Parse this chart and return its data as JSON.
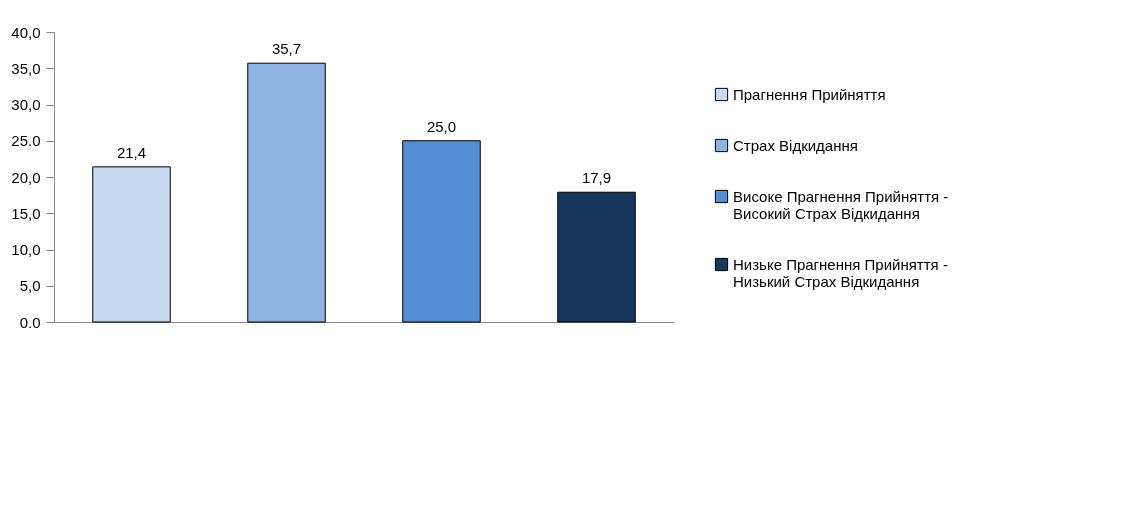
{
  "chart_data": {
    "type": "bar",
    "categories": [
      null,
      null,
      null,
      null
    ],
    "series": [
      {
        "name": "Прагнення Прийняття",
        "color": "#c6d9f1",
        "values": [
          21.4,
          null,
          null,
          null
        ],
        "value_labels": [
          "21,4",
          null,
          null,
          null
        ]
      },
      {
        "name": "Страх Відкидання",
        "color": "#8eb4e3",
        "values": [
          null,
          35.7,
          null,
          null
        ],
        "value_labels": [
          null,
          "35,7",
          null,
          null
        ]
      },
      {
        "name": "Високе Прагнення Прийняття - Високий Страх Відкидання",
        "color": "#558ed5",
        "values": [
          null,
          null,
          25.0,
          null
        ],
        "value_labels": [
          null,
          null,
          "25,0",
          null
        ]
      },
      {
        "name": "Низьке Прагнення Прийняття - Низький Страх Відкидання",
        "color": "#17375e",
        "values": [
          null,
          null,
          null,
          17.9
        ],
        "value_labels": [
          null,
          null,
          null,
          "17,9"
        ]
      }
    ],
    "ylim": [
      0,
      40
    ],
    "yticks": [
      {
        "value": 0,
        "label": "0.0"
      },
      {
        "value": 5,
        "label": "5,0"
      },
      {
        "value": 10,
        "label": "10,0"
      },
      {
        "value": 15,
        "label": "15,0"
      },
      {
        "value": 20,
        "label": "20,0"
      },
      {
        "value": 25,
        "label": "25.0"
      },
      {
        "value": 30,
        "label": "30,0"
      },
      {
        "value": 35,
        "label": "35,0"
      },
      {
        "value": 40,
        "label": "40,0"
      }
    ],
    "grid": false,
    "legend": "right"
  }
}
